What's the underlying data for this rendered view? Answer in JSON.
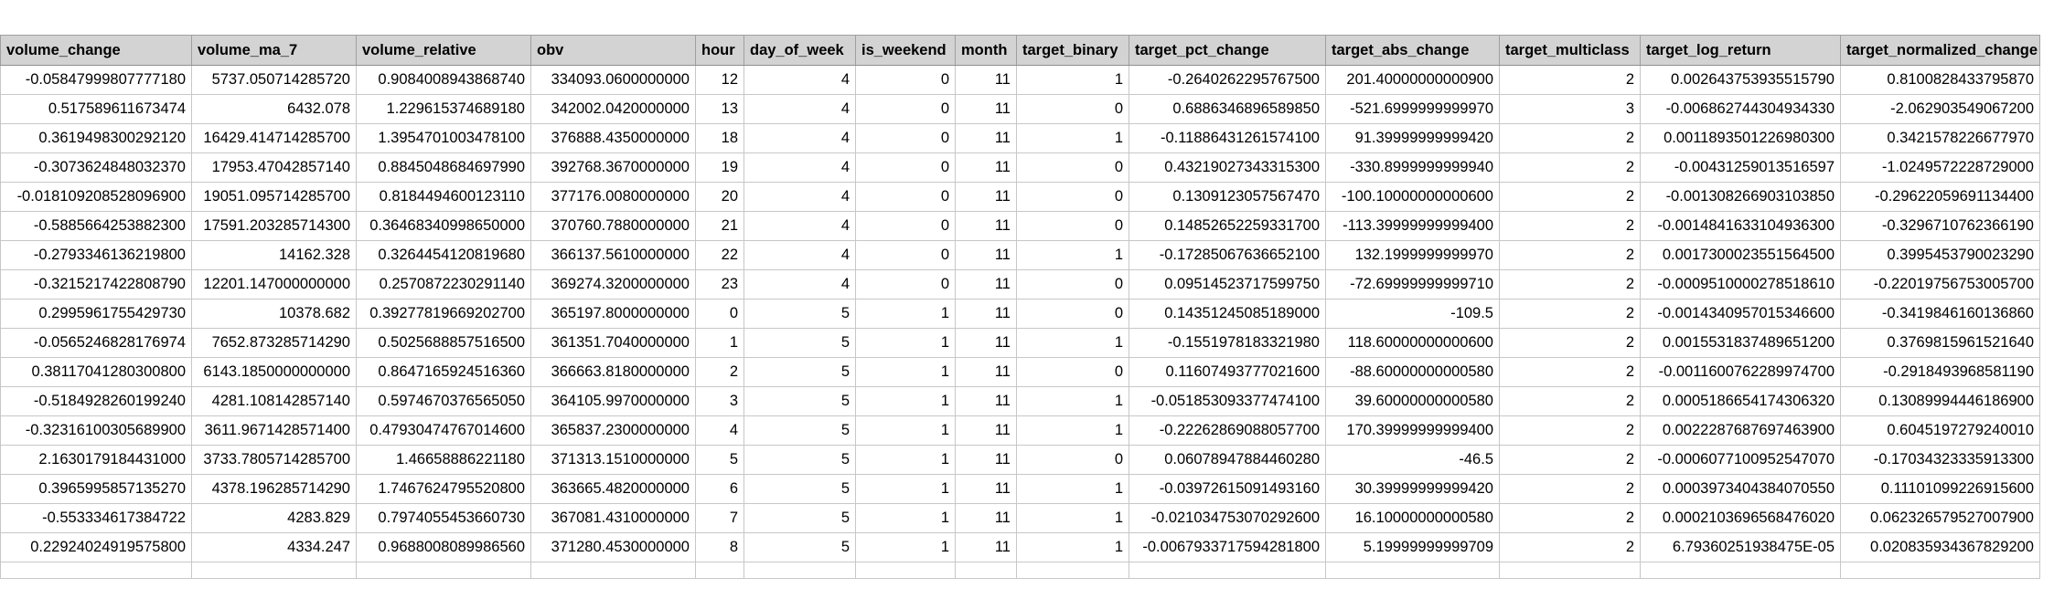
{
  "columns": [
    "volume_change",
    "volume_ma_7",
    "volume_relative",
    "obv",
    "hour",
    "day_of_week",
    "is_weekend",
    "month",
    "target_binary",
    "target_pct_change",
    "target_abs_change",
    "target_multiclass",
    "target_log_return",
    "target_normalized_change"
  ],
  "rows": [
    [
      "-0.05847999807777180",
      "5737.050714285720",
      "0.9084008943868740",
      "334093.0600000000",
      "12",
      "4",
      "0",
      "11",
      "1",
      "-0.2640262295767500",
      "201.40000000000900",
      "2",
      "0.002643753935515790",
      "0.810082843379587O"
    ],
    [
      "0.517589611673474",
      "6432.078",
      "1.22961537468918O",
      "342002.0420000000",
      "13",
      "4",
      "0",
      "11",
      "0",
      "0.6886346896589850",
      "-521.6999999999970",
      "3",
      "-0.006862744304934330",
      "-2.062903549067200"
    ],
    [
      "0.3619498300292120",
      "16429.414714285700",
      "1.3954701003478100",
      "376888.4350000000",
      "18",
      "4",
      "0",
      "11",
      "1",
      "-0.11886431261574100",
      "91.39999999999420",
      "2",
      "0.001189350122698030O",
      "0.342157822667797O"
    ],
    [
      "-0.307362484803237O",
      "17953.47042857140",
      "0.8845048684697990",
      "392768.3670000000",
      "19",
      "4",
      "0",
      "11",
      "0",
      "0.4321902734331530O",
      "-330.8999999999940",
      "2",
      "-0.00431259013516597",
      "-1.0249572228729000"
    ],
    [
      "-0.018109208528096900",
      "19051.095714285700",
      "0.8184494600123110",
      "377176.0080000000",
      "20",
      "4",
      "0",
      "11",
      "0",
      "0.1309123057567470",
      "-100.10000000000600",
      "2",
      "-0.001308266903103850",
      "-0.2962205969113440O"
    ],
    [
      "-0.5885664253882300",
      "17591.203285714300",
      "0.3646834099865000O",
      "370760.7880000000",
      "21",
      "4",
      "0",
      "11",
      "0",
      "0.14852652259331700",
      "-113.39999999999400",
      "2",
      "-0.0014841633104936300",
      "-0.3296710762366190"
    ],
    [
      "-0.2793346136219800",
      "14162.328",
      "0.3264454120819680",
      "366137.5610000000",
      "22",
      "4",
      "0",
      "11",
      "1",
      "-0.17285067636652100",
      "132.1999999999970",
      "2",
      "0.0017300023551564500",
      "0.3995453790023290"
    ],
    [
      "-0.3215217422808790",
      "12201.147000000000",
      "0.2570872230291140",
      "369274.3200000000",
      "23",
      "4",
      "0",
      "11",
      "0",
      "0.09514523717599750",
      "-72.69999999999710",
      "2",
      "-0.0009510000278518610",
      "-0.2201975675300570O"
    ],
    [
      "0.2995961755429730",
      "10378.682",
      "0.3927781966920270O",
      "365197.8000000000",
      "0",
      "5",
      "1",
      "11",
      "0",
      "0.1435124508518900O",
      "-109.5",
      "2",
      "-0.0014340957015346600",
      "-0.341984616013686O"
    ],
    [
      "-0.0565246828176974",
      "7652.873285714290",
      "0.5025688857516500",
      "361351.7040000000",
      "1",
      "5",
      "1",
      "11",
      "1",
      "-0.1551978183321980",
      "118.60000000000600",
      "2",
      "0.001553183748965120O",
      "0.3769815961521640"
    ],
    [
      "0.3811704128030080O",
      "6143.1850000000000",
      "0.8647165924516360",
      "366663.8180000000",
      "2",
      "5",
      "1",
      "11",
      "0",
      "0.1160749377702160O",
      "-88.60000000000580",
      "2",
      "-0.0011600762289974700",
      "-0.2918493968581190"
    ],
    [
      "-0.5184928260199240",
      "4281.108142857140",
      "0.5974670376565050",
      "364105.9970000000",
      "3",
      "5",
      "1",
      "11",
      "1",
      "-0.05185309337747410O",
      "39.60000000000580",
      "2",
      "0.0005186654174306320",
      "0.1308999444618690O"
    ],
    [
      "-0.3231610030568990O",
      "3611.9671428571400",
      "0.4793047476701460O",
      "365837.2300000000",
      "4",
      "5",
      "1",
      "11",
      "1",
      "-0.2226286908805770O",
      "170.39999999999400",
      "2",
      "0.0022287687697463900",
      "0.6045197279240010"
    ],
    [
      "2.163017918443100O",
      "3733.7805714285700",
      "1.4665888622118O",
      "371313.1510000000",
      "5",
      "5",
      "1",
      "11",
      "0",
      "0.06078947884460280",
      "-46.5",
      "2",
      "-0.0006077100952547070",
      "-0.17034323335913300"
    ],
    [
      "0.3965995857135270",
      "4378.196285714290",
      "1.7467624795520800",
      "363665.4820000000",
      "6",
      "5",
      "1",
      "11",
      "1",
      "-0.03972615091493160",
      "30.39999999999420",
      "2",
      "0.0003973404384070550",
      "0.1110109922691560O"
    ],
    [
      "-0.553334617384722",
      "4283.829",
      "0.7974055453660730",
      "367081.4310000000",
      "7",
      "5",
      "1",
      "11",
      "1",
      "-0.021034753070292600",
      "16.10000000000580",
      "2",
      "0.0002103696568476020",
      "0.06232657952700790O"
    ],
    [
      "0.22924024919575800",
      "4334.247",
      "0.9688008089986560",
      "371280.4530000000",
      "8",
      "5",
      "1",
      "11",
      "1",
      "-0.006793371759428180O",
      "5.19999999999709",
      "2",
      "6.79360251938475E-05",
      "0.02083593436782920O"
    ]
  ]
}
